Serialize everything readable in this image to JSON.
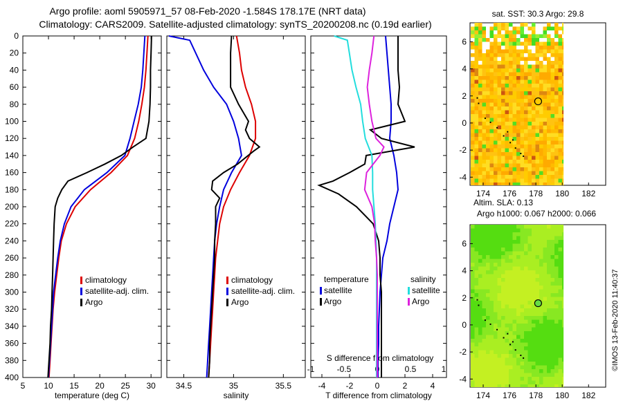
{
  "title": {
    "line1": "Argo profile: aoml 5905971_57 08-Feb-2020 -1.584S 178.17E (NRT data)",
    "line2": "Climatology: CARS2009. Satellite-adjusted climatology: synTS_20200208.nc (0.19d earlier)"
  },
  "colors": {
    "climatology": "#dd0000",
    "satellite": "#0000dd",
    "argo": "#000000",
    "sat_salinity": "#22dddd",
    "argo_salinity": "#dd22dd"
  },
  "chart_data": [
    {
      "type": "line",
      "name": "temperature-panel",
      "xlabel": "temperature (deg C)",
      "ylabel": "",
      "xlim": [
        5,
        32
      ],
      "ylim": [
        400,
        0
      ],
      "xticks": [
        "5",
        "10",
        "15",
        "20",
        "25",
        "30"
      ],
      "yticks": [
        "0",
        "20",
        "40",
        "60",
        "80",
        "100",
        "120",
        "140",
        "160",
        "180",
        "200",
        "220",
        "240",
        "260",
        "280",
        "300",
        "320",
        "340",
        "360",
        "380",
        "400"
      ],
      "legend": [
        "climatology",
        "satellite-adj. clim.",
        "Argo"
      ],
      "series": [
        {
          "name": "climatology",
          "depth": [
            0,
            20,
            40,
            60,
            80,
            100,
            120,
            140,
            160,
            180,
            200,
            220,
            240,
            260,
            280,
            300,
            320,
            340,
            360,
            380,
            400
          ],
          "values": [
            29.4,
            29.2,
            29.0,
            28.7,
            28.2,
            27.6,
            26.8,
            25.4,
            22.2,
            18.2,
            15.2,
            13.5,
            12.5,
            12.0,
            11.6,
            11.2,
            10.9,
            10.7,
            10.5,
            10.3,
            10.1
          ]
        },
        {
          "name": "satellite-adj. clim.",
          "depth": [
            0,
            20,
            40,
            60,
            80,
            100,
            120,
            140,
            160,
            180,
            200,
            220,
            240,
            260,
            280,
            300,
            320,
            340,
            360,
            380,
            400
          ],
          "values": [
            28.8,
            28.6,
            28.4,
            28.1,
            27.5,
            26.7,
            25.9,
            24.9,
            21.4,
            17.0,
            14.4,
            13.1,
            12.3,
            11.8,
            11.4,
            11.0,
            10.8,
            10.6,
            10.4,
            10.2,
            10.0
          ]
        },
        {
          "name": "Argo",
          "depth": [
            0,
            20,
            40,
            60,
            80,
            100,
            120,
            130,
            140,
            150,
            160,
            170,
            180,
            190,
            200,
            220,
            240,
            260,
            280,
            300,
            320,
            340,
            360,
            380,
            400
          ],
          "values": [
            30.1,
            30.0,
            29.9,
            29.9,
            29.8,
            29.6,
            29.0,
            26.5,
            24.2,
            21.0,
            17.5,
            13.8,
            12.6,
            11.8,
            11.3,
            11.1,
            11.0,
            10.9,
            10.8,
            10.7,
            10.6,
            10.4,
            10.3,
            10.1,
            9.9
          ]
        }
      ]
    },
    {
      "type": "line",
      "name": "salinity-panel",
      "xlabel": "salinity",
      "ylabel": "",
      "xlim": [
        34.33,
        35.72
      ],
      "ylim": [
        400,
        0
      ],
      "xticks": [
        "34.5",
        "35",
        "35.5"
      ],
      "legend": [
        "climatology",
        "satellite-adj. clim.",
        "Argo"
      ],
      "series": [
        {
          "name": "climatology",
          "depth": [
            0,
            20,
            40,
            60,
            80,
            100,
            120,
            140,
            160,
            180,
            200,
            220,
            240,
            260,
            280,
            300,
            320,
            340,
            360,
            380,
            400
          ],
          "values": [
            35.03,
            35.06,
            35.08,
            35.12,
            35.18,
            35.22,
            35.22,
            35.16,
            35.06,
            34.97,
            34.9,
            34.86,
            34.84,
            34.82,
            34.81,
            34.8,
            34.79,
            34.78,
            34.77,
            34.76,
            34.75
          ]
        },
        {
          "name": "satellite-adj. clim.",
          "depth": [
            0,
            5,
            20,
            40,
            60,
            80,
            100,
            120,
            140,
            160,
            180,
            200,
            220,
            240,
            260,
            280,
            300,
            320,
            340,
            360,
            380,
            400
          ],
          "values": [
            34.35,
            34.56,
            34.62,
            34.7,
            34.8,
            34.93,
            35.0,
            35.05,
            35.08,
            34.98,
            34.9,
            34.86,
            34.83,
            34.81,
            34.8,
            34.79,
            34.78,
            34.77,
            34.76,
            34.75,
            34.74,
            34.73
          ]
        },
        {
          "name": "Argo",
          "depth": [
            0,
            20,
            40,
            60,
            80,
            100,
            110,
            120,
            130,
            135,
            150,
            160,
            170,
            180,
            190,
            200,
            220,
            240,
            260,
            280,
            300,
            320,
            340,
            360,
            380,
            400
          ],
          "values": [
            34.98,
            34.97,
            34.97,
            34.97,
            35.05,
            35.15,
            35.12,
            35.16,
            35.26,
            35.2,
            35.04,
            34.9,
            34.79,
            34.78,
            34.86,
            34.82,
            34.82,
            34.81,
            34.81,
            34.8,
            34.79,
            34.78,
            34.77,
            34.76,
            34.76,
            34.75
          ]
        }
      ]
    },
    {
      "type": "line",
      "name": "difference-panel",
      "xlabel": "T difference from climatology",
      "xlabel_top": "S difference from climatology",
      "xlim": [
        -4.8,
        5.0
      ],
      "ylim": [
        400,
        0
      ],
      "xticks": [
        "-4",
        "-2",
        "0",
        "2",
        "4"
      ],
      "xticks_top": [
        "-1",
        "-0.5",
        "0",
        "0.5",
        "1"
      ],
      "legend_headers": [
        "temperature",
        "salinity"
      ],
      "legend_temperature": [
        "satellite",
        "Argo"
      ],
      "legend_salinity": [
        "satellite",
        "Argo"
      ],
      "series": [
        {
          "name": "T satellite",
          "depth": [
            0,
            20,
            40,
            60,
            80,
            100,
            120,
            140,
            160,
            180,
            200,
            220,
            240,
            260,
            280,
            300,
            320,
            340,
            360,
            380,
            400
          ],
          "values": [
            0.6,
            0.7,
            0.8,
            0.9,
            1.0,
            1.0,
            0.9,
            1.2,
            1.4,
            1.5,
            1.2,
            0.9,
            0.7,
            0.4,
            0.3,
            0.2,
            0.15,
            0.1,
            0.1,
            0.05,
            0.05
          ]
        },
        {
          "name": "T Argo",
          "depth": [
            0,
            20,
            40,
            60,
            80,
            100,
            110,
            120,
            130,
            140,
            150,
            160,
            170,
            175,
            185,
            200,
            220,
            240,
            260,
            280,
            300,
            320,
            340,
            360,
            380,
            400
          ],
          "values": [
            1.5,
            1.5,
            1.5,
            1.6,
            1.5,
            2.0,
            -0.5,
            0.3,
            2.7,
            -0.8,
            -0.9,
            -2.0,
            -3.2,
            -4.2,
            -2.8,
            -1.5,
            -0.3,
            0.1,
            0.2,
            0.2,
            0.3,
            0.3,
            0.3,
            0.3,
            0.3,
            0.3
          ]
        },
        {
          "name": "S satellite",
          "depth": [
            0,
            5,
            20,
            40,
            60,
            80,
            100,
            120,
            140,
            160,
            180,
            200,
            220,
            240,
            260,
            280,
            300,
            320,
            340,
            360,
            380,
            400
          ],
          "values": [
            -0.65,
            -0.45,
            -0.42,
            -0.38,
            -0.32,
            -0.25,
            -0.22,
            -0.18,
            -0.08,
            -0.07,
            -0.07,
            -0.05,
            -0.03,
            -0.02,
            -0.01,
            -0.01,
            -0.01,
            -0.01,
            -0.01,
            -0.01,
            -0.01,
            -0.01
          ]
        },
        {
          "name": "S Argo",
          "depth": [
            0,
            20,
            40,
            60,
            80,
            100,
            120,
            130,
            140,
            160,
            180,
            200,
            220,
            240,
            260,
            280,
            300,
            320,
            340,
            360,
            380,
            400
          ],
          "values": [
            -0.05,
            -0.08,
            -0.12,
            -0.15,
            -0.12,
            -0.08,
            -0.02,
            0.1,
            0.04,
            -0.16,
            -0.19,
            -0.08,
            -0.04,
            -0.03,
            -0.01,
            0.0,
            0.0,
            0.0,
            0.0,
            0.0,
            0.0,
            0.0
          ]
        }
      ]
    },
    {
      "type": "heatmap",
      "name": "sst-map",
      "title": "sat. SST: 30.3 Argo: 29.8",
      "xlim": [
        173,
        183.3
      ],
      "ylim": [
        -4.6,
        7.4
      ],
      "xticks": [
        "174",
        "176",
        "178",
        "180",
        "182"
      ],
      "yticks": [
        "-4",
        "-2",
        "0",
        "2",
        "4",
        "6"
      ],
      "argo_position": {
        "lon": 178.17,
        "lat": 1.6
      }
    },
    {
      "type": "heatmap",
      "name": "sla-map",
      "title1": "Altim. SLA: 0.13",
      "title2": "Argo h1000: 0.067 h2000: 0.066",
      "xlim": [
        173,
        183.3
      ],
      "ylim": [
        -4.6,
        7.4
      ],
      "xticks": [
        "174",
        "176",
        "178",
        "180",
        "182"
      ],
      "yticks": [
        "-4",
        "-2",
        "0",
        "2",
        "4",
        "6"
      ],
      "argo_position": {
        "lon": 178.17,
        "lat": 1.6
      }
    }
  ],
  "credit": "©IMOS 13-Feb-2020 11:40:37"
}
